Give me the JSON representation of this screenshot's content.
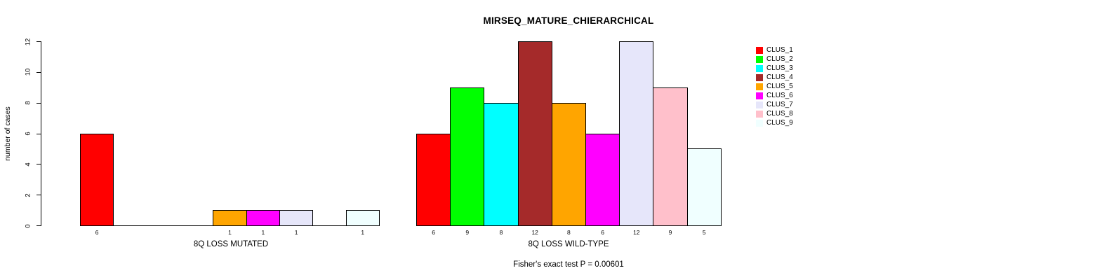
{
  "chart_data": {
    "type": "bar",
    "title": "MIRSEQ_MATURE_CHIERARCHICAL",
    "ylabel": "number of cases",
    "ylim": [
      0,
      12
    ],
    "yticks": [
      0,
      2,
      4,
      6,
      8,
      10,
      12
    ],
    "grid": false,
    "legend_position": "right-outside",
    "categories": [
      "CLUS_1",
      "CLUS_2",
      "CLUS_3",
      "CLUS_4",
      "CLUS_5",
      "CLUS_6",
      "CLUS_7",
      "CLUS_8",
      "CLUS_9"
    ],
    "palette": [
      "#FF0000",
      "#00FF00",
      "#00FFFF",
      "#A52A2A",
      "#FFA500",
      "#FF00FF",
      "#E6E6FA",
      "#FFC0CB",
      "#F0FFFF"
    ],
    "series": [
      {
        "name": "8Q LOSS MUTATED",
        "values": [
          6,
          0,
          0,
          0,
          1,
          1,
          1,
          0,
          1
        ]
      },
      {
        "name": "8Q LOSS WILD-TYPE",
        "values": [
          6,
          9,
          8,
          12,
          8,
          6,
          12,
          9,
          5
        ]
      }
    ],
    "annotation": "Fisher's exact test P = 0.00601",
    "bar_labels_shown_only_for_nonzero": true,
    "axis_color": "#000000",
    "background_color": "#FFFFFF"
  }
}
